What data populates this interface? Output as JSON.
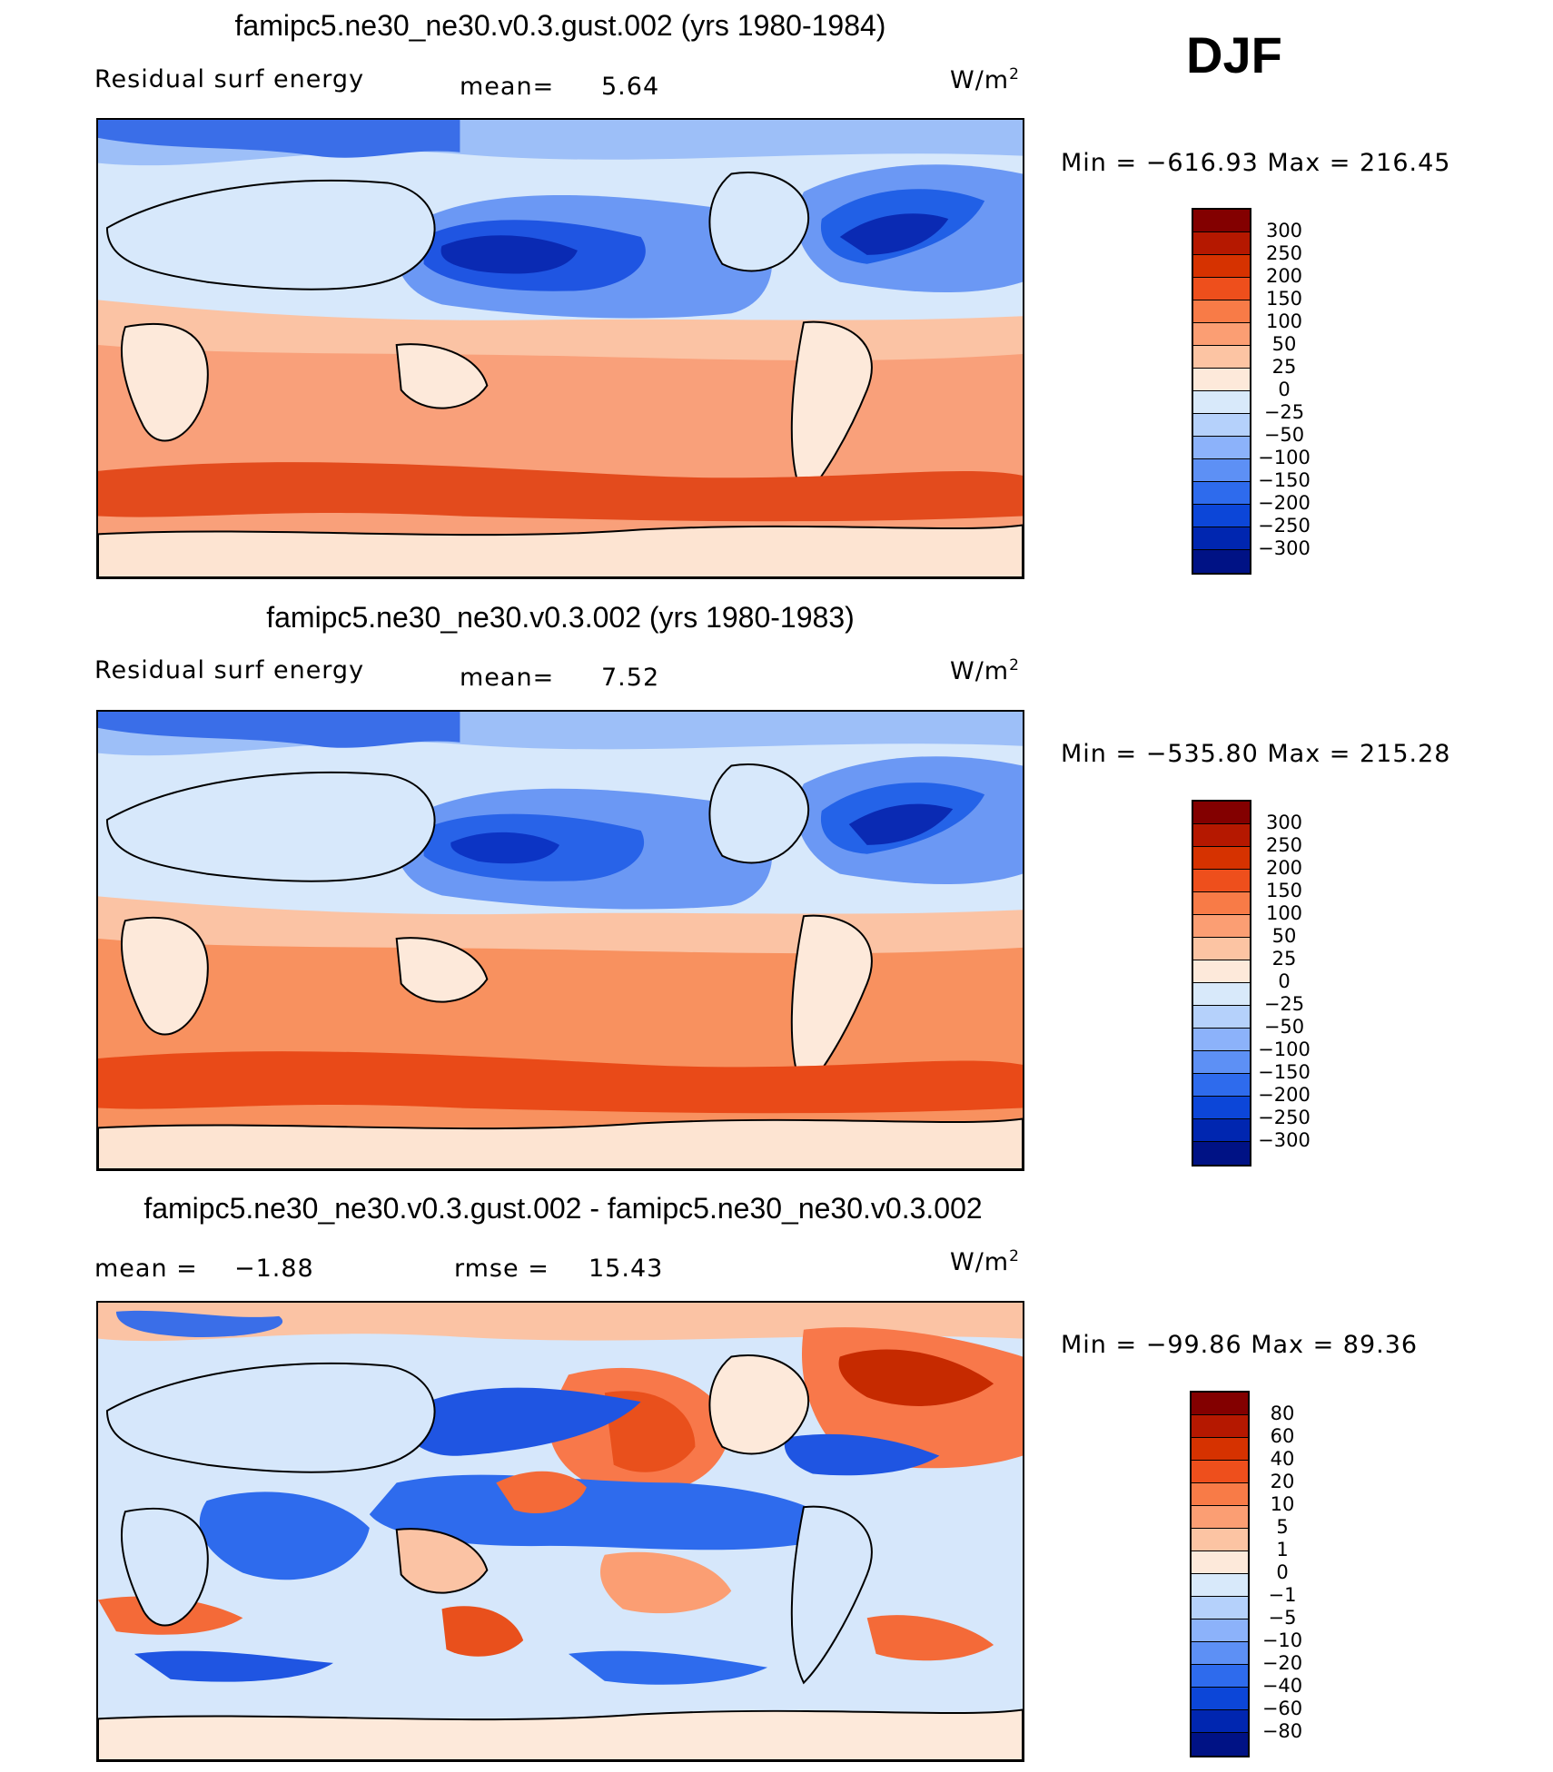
{
  "season": "DJF",
  "units_label": "W/m",
  "units_sup": "2",
  "panels": [
    {
      "title": "famipc5.ne30_ne30.v0.3.gust.002 (yrs 1980-1984)",
      "left_label": "Residual surf energy",
      "mid_label": "mean=",
      "mid_value": "5.64",
      "minmax": "Min = −616.93 Max = 216.45",
      "colorbar": {
        "labels": [
          "300",
          "250",
          "200",
          "150",
          "100",
          "50",
          "25",
          "0",
          "−25",
          "−50",
          "−100",
          "−150",
          "−200",
          "−250",
          "−300"
        ],
        "colors": [
          "#830000",
          "#b51800",
          "#d63200",
          "#ee4f1c",
          "#f87b47",
          "#fb9e73",
          "#fcc4a3",
          "#fde9da",
          "#d8e9fa",
          "#b5d1fb",
          "#8cb2fa",
          "#5d90f5",
          "#2e6bed",
          "#0c46d8",
          "#0026b0",
          "#001285"
        ]
      }
    },
    {
      "title": "famipc5.ne30_ne30.v0.3.002 (yrs 1980-1983)",
      "left_label": "Residual surf energy",
      "mid_label": "mean=",
      "mid_value": "7.52",
      "minmax": "Min = −535.80 Max = 215.28",
      "colorbar": {
        "labels": [
          "300",
          "250",
          "200",
          "150",
          "100",
          "50",
          "25",
          "0",
          "−25",
          "−50",
          "−100",
          "−150",
          "−200",
          "−250",
          "−300"
        ],
        "colors": [
          "#830000",
          "#b51800",
          "#d63200",
          "#ee4f1c",
          "#f87b47",
          "#fb9e73",
          "#fcc4a3",
          "#fde9da",
          "#d8e9fa",
          "#b5d1fb",
          "#8cb2fa",
          "#5d90f5",
          "#2e6bed",
          "#0c46d8",
          "#0026b0",
          "#001285"
        ]
      }
    },
    {
      "title": "famipc5.ne30_ne30.v0.3.gust.002 - famipc5.ne30_ne30.v0.3.002",
      "left_label": "mean =",
      "left_value": "−1.88",
      "mid_label": "rmse =",
      "mid_value": "15.43",
      "minmax": "Min = −99.86 Max =  89.36",
      "colorbar": {
        "labels": [
          "80",
          "60",
          "40",
          "20",
          "10",
          "5",
          "1",
          "0",
          "−1",
          "−5",
          "−10",
          "−20",
          "−40",
          "−60",
          "−80"
        ],
        "colors": [
          "#830000",
          "#b51800",
          "#d63200",
          "#ee4f1c",
          "#f87b47",
          "#fb9e73",
          "#fcc4a3",
          "#fde9da",
          "#d8e9fa",
          "#b5d1fb",
          "#8cb2fa",
          "#5d90f5",
          "#2e6bed",
          "#0c46d8",
          "#0026b0",
          "#001285"
        ]
      }
    }
  ]
}
